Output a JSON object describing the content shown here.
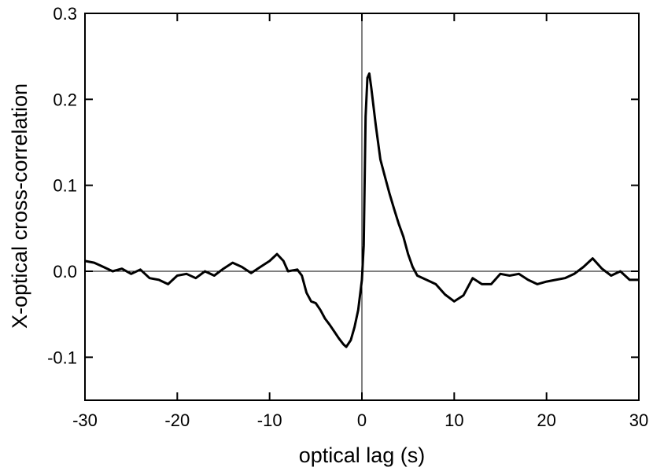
{
  "chart_data": {
    "type": "line",
    "xlabel": "optical lag (s)",
    "ylabel": "X-optical cross-correlation",
    "xlim": [
      -30,
      30
    ],
    "ylim": [
      -0.15,
      0.3
    ],
    "xticks": [
      -30,
      -20,
      -10,
      0,
      10,
      20,
      30
    ],
    "yticks": [
      -0.1,
      {
        "value": 0,
        "label": "0.0"
      },
      0.1,
      0.2,
      0.3
    ],
    "hline": 0,
    "vline": 0,
    "series": [
      {
        "color": "#000000",
        "x": [
          -30,
          -29,
          -28,
          -27,
          -26,
          -25,
          -24,
          -23,
          -22,
          -21,
          -20,
          -19,
          -18,
          -17,
          -16,
          -15,
          -14,
          -13,
          -12,
          -11,
          -10,
          -9.2,
          -8.5,
          -8,
          -7,
          -6.5,
          -6,
          -5.5,
          -5,
          -4.5,
          -4,
          -3.5,
          -3,
          -2.5,
          -2,
          -1.7,
          -1.2,
          -0.8,
          -0.4,
          0,
          0.2,
          0.4,
          0.6,
          0.8,
          1,
          1.5,
          2,
          2.5,
          3,
          3.5,
          4,
          4.5,
          5,
          5.5,
          6,
          7,
          8,
          9,
          10,
          11,
          12,
          13,
          14,
          15,
          16,
          17,
          18,
          19,
          20,
          21,
          22,
          23,
          24,
          25,
          26,
          27,
          28,
          29,
          30
        ],
        "values": [
          0.012,
          0.01,
          0.005,
          0.0,
          0.003,
          -0.003,
          0.002,
          -0.008,
          -0.01,
          -0.015,
          -0.005,
          -0.003,
          -0.008,
          0.0,
          -0.005,
          0.003,
          0.01,
          0.005,
          -0.002,
          0.005,
          0.012,
          0.02,
          0.012,
          0.0,
          0.002,
          -0.005,
          -0.025,
          -0.035,
          -0.037,
          -0.045,
          -0.055,
          -0.062,
          -0.07,
          -0.078,
          -0.085,
          -0.088,
          -0.08,
          -0.065,
          -0.045,
          -0.01,
          0.03,
          0.18,
          0.225,
          0.23,
          0.215,
          0.17,
          0.13,
          0.11,
          0.09,
          0.072,
          0.055,
          0.04,
          0.02,
          0.005,
          -0.005,
          -0.01,
          -0.015,
          -0.027,
          -0.035,
          -0.028,
          -0.008,
          -0.015,
          -0.015,
          -0.003,
          -0.005,
          -0.003,
          -0.01,
          -0.015,
          -0.012,
          -0.01,
          -0.008,
          -0.003,
          0.005,
          0.015,
          0.003,
          -0.005,
          0.0,
          -0.01,
          -0.01
        ]
      }
    ]
  }
}
